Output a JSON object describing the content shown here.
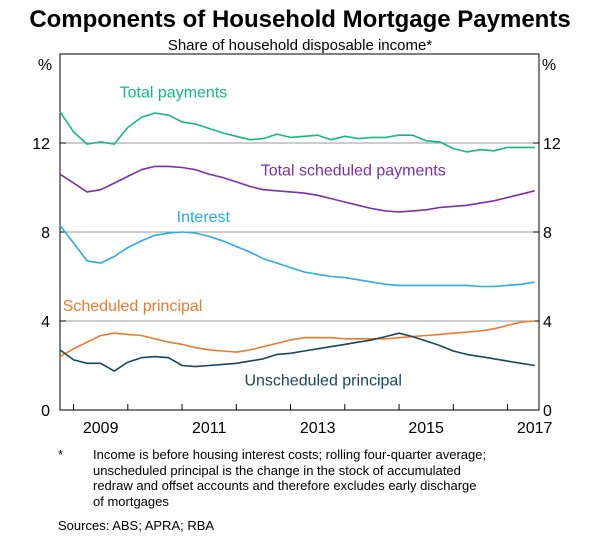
{
  "chart_data": {
    "type": "line",
    "title": "Components of Household Mortgage Payments",
    "subtitle": "Share of household disposable income*",
    "ylabel_left": "%",
    "ylabel_right": "%",
    "ylim": [
      0,
      16
    ],
    "yticks": [
      0,
      4,
      8,
      12
    ],
    "xlim": [
      2008.75,
      2017.58
    ],
    "xticks": [
      2009,
      2011,
      2013,
      2015,
      2017
    ],
    "xtick_labels": [
      "2009",
      "2011",
      "2013",
      "2015",
      "2017"
    ],
    "gridlines": [
      4,
      8,
      12
    ],
    "series": [
      {
        "name": "Total payments",
        "color": "#12b886",
        "x": [
          2008.75,
          2009.0,
          2009.25,
          2009.5,
          2009.75,
          2010.0,
          2010.25,
          2010.5,
          2010.75,
          2011.0,
          2011.25,
          2011.5,
          2011.75,
          2012.0,
          2012.25,
          2012.5,
          2012.75,
          2013.0,
          2013.25,
          2013.5,
          2013.75,
          2014.0,
          2014.25,
          2014.5,
          2014.75,
          2015.0,
          2015.25,
          2015.5,
          2015.75,
          2016.0,
          2016.25,
          2016.5,
          2016.75,
          2017.0,
          2017.25,
          2017.5
        ],
        "y": [
          13.4,
          12.5,
          11.95,
          12.05,
          11.95,
          12.7,
          13.15,
          13.35,
          13.25,
          12.95,
          12.85,
          12.65,
          12.45,
          12.3,
          12.15,
          12.2,
          12.4,
          12.25,
          12.3,
          12.35,
          12.15,
          12.3,
          12.2,
          12.25,
          12.25,
          12.35,
          12.35,
          12.1,
          12.05,
          11.75,
          11.6,
          11.7,
          11.65,
          11.8,
          11.8,
          11.8
        ]
      },
      {
        "name": "Total scheduled payments",
        "color": "#7b2fa8",
        "x": [
          2008.75,
          2009.0,
          2009.25,
          2009.5,
          2009.75,
          2010.0,
          2010.25,
          2010.5,
          2010.75,
          2011.0,
          2011.25,
          2011.5,
          2011.75,
          2012.0,
          2012.25,
          2012.5,
          2012.75,
          2013.0,
          2013.25,
          2013.5,
          2013.75,
          2014.0,
          2014.25,
          2014.5,
          2014.75,
          2015.0,
          2015.25,
          2015.5,
          2015.75,
          2016.0,
          2016.25,
          2016.5,
          2016.75,
          2017.0,
          2017.25,
          2017.5
        ],
        "y": [
          10.6,
          10.2,
          9.8,
          9.9,
          10.2,
          10.5,
          10.8,
          10.95,
          10.95,
          10.9,
          10.8,
          10.6,
          10.45,
          10.25,
          10.05,
          9.9,
          9.85,
          9.8,
          9.75,
          9.65,
          9.5,
          9.35,
          9.2,
          9.05,
          8.95,
          8.9,
          8.95,
          9.0,
          9.1,
          9.15,
          9.2,
          9.3,
          9.4,
          9.55,
          9.7,
          9.85
        ]
      },
      {
        "name": "Interest",
        "color": "#2aaee0",
        "x": [
          2008.75,
          2009.0,
          2009.25,
          2009.5,
          2009.75,
          2010.0,
          2010.25,
          2010.5,
          2010.75,
          2011.0,
          2011.25,
          2011.5,
          2011.75,
          2012.0,
          2012.25,
          2012.5,
          2012.75,
          2013.0,
          2013.25,
          2013.5,
          2013.75,
          2014.0,
          2014.25,
          2014.5,
          2014.75,
          2015.0,
          2015.25,
          2015.5,
          2015.75,
          2016.0,
          2016.25,
          2016.5,
          2016.75,
          2017.0,
          2017.25,
          2017.5
        ],
        "y": [
          8.3,
          7.5,
          6.7,
          6.6,
          6.9,
          7.3,
          7.6,
          7.85,
          7.95,
          8.0,
          7.95,
          7.8,
          7.6,
          7.35,
          7.1,
          6.8,
          6.6,
          6.4,
          6.2,
          6.1,
          6.0,
          5.95,
          5.85,
          5.75,
          5.65,
          5.6,
          5.6,
          5.6,
          5.6,
          5.6,
          5.6,
          5.55,
          5.55,
          5.6,
          5.65,
          5.75
        ]
      },
      {
        "name": "Scheduled principal",
        "color": "#f07a2b",
        "x": [
          2008.75,
          2009.0,
          2009.25,
          2009.5,
          2009.75,
          2010.0,
          2010.25,
          2010.5,
          2010.75,
          2011.0,
          2011.25,
          2011.5,
          2011.75,
          2012.0,
          2012.25,
          2012.5,
          2012.75,
          2013.0,
          2013.25,
          2013.5,
          2013.75,
          2014.0,
          2014.25,
          2014.5,
          2014.75,
          2015.0,
          2015.25,
          2015.5,
          2015.75,
          2016.0,
          2016.25,
          2016.5,
          2016.75,
          2017.0,
          2017.25,
          2017.5
        ],
        "y": [
          2.4,
          2.75,
          3.05,
          3.35,
          3.45,
          3.4,
          3.35,
          3.2,
          3.05,
          2.95,
          2.8,
          2.7,
          2.65,
          2.6,
          2.7,
          2.85,
          3.0,
          3.15,
          3.25,
          3.25,
          3.25,
          3.2,
          3.2,
          3.2,
          3.2,
          3.25,
          3.3,
          3.35,
          3.4,
          3.45,
          3.5,
          3.55,
          3.65,
          3.8,
          3.95,
          4.0
        ]
      },
      {
        "name": "Unscheduled principal",
        "color": "#17485e",
        "x": [
          2008.75,
          2009.0,
          2009.25,
          2009.5,
          2009.75,
          2010.0,
          2010.25,
          2010.5,
          2010.75,
          2011.0,
          2011.25,
          2011.5,
          2011.75,
          2012.0,
          2012.25,
          2012.5,
          2012.75,
          2013.0,
          2013.25,
          2013.5,
          2013.75,
          2014.0,
          2014.25,
          2014.5,
          2014.75,
          2015.0,
          2015.25,
          2015.5,
          2015.75,
          2016.0,
          2016.25,
          2016.5,
          2016.75,
          2017.0,
          2017.25,
          2017.5
        ],
        "y": [
          2.7,
          2.25,
          2.1,
          2.1,
          1.75,
          2.15,
          2.35,
          2.4,
          2.35,
          2.0,
          1.95,
          2.0,
          2.05,
          2.1,
          2.2,
          2.3,
          2.5,
          2.55,
          2.65,
          2.75,
          2.85,
          2.95,
          3.05,
          3.15,
          3.3,
          3.45,
          3.3,
          3.1,
          2.9,
          2.65,
          2.5,
          2.4,
          2.3,
          2.2,
          2.1,
          2.0
        ]
      }
    ]
  },
  "notes": {
    "asterisk": "*",
    "footnote_lines": [
      "Income is before housing interest costs; rolling four-quarter average;",
      "unscheduled principal is the change in the stock of accumulated",
      "redraw and offset accounts and therefore excludes early discharge",
      "of mortgages"
    ],
    "sources": "Sources:   ABS; APRA; RBA"
  }
}
